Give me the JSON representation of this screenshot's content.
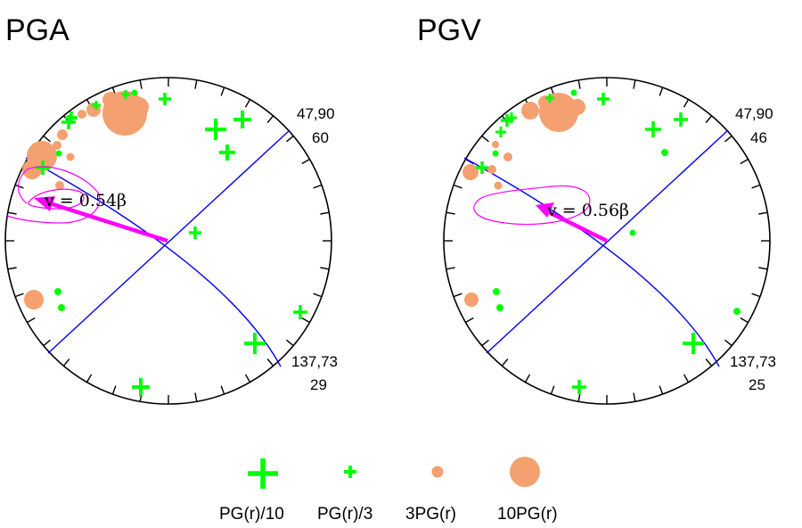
{
  "panels": [
    {
      "title": "PGA",
      "pole_top": [
        "47,90",
        "60"
      ],
      "pole_bottom": [
        "137,73",
        "29"
      ],
      "velocity_label": "v = 0.54β",
      "colors": {
        "plane": "#0000ff",
        "arrow": "#ff00ff",
        "cross": "#00ff00",
        "circle": "#f4a070"
      }
    },
    {
      "title": "PGV",
      "pole_top": [
        "47,90",
        "46"
      ],
      "pole_bottom": [
        "137,73",
        "25"
      ],
      "velocity_label": "v = 0.56β",
      "colors": {
        "plane": "#0000ff",
        "arrow": "#ff00ff",
        "cross": "#00ff00",
        "circle": "#f4a070"
      }
    }
  ],
  "legend": [
    {
      "label": "PG(r)/10",
      "symbol": "large-cross"
    },
    {
      "label": "PG(r)/3",
      "symbol": "small-cross"
    },
    {
      "label": "3PG(r)",
      "symbol": "small-circle"
    },
    {
      "label": "10PG(r)",
      "symbol": "large-circle"
    }
  ]
}
